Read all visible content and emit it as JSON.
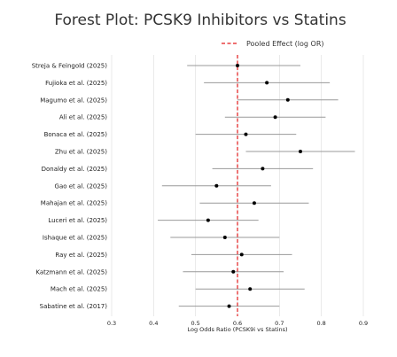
{
  "chart_data": {
    "type": "forest",
    "title": "Forest Plot: PCSK9 Inhibitors vs Statins",
    "xlabel": "Log Odds Ratio (PCSK9i vs Statins)",
    "xlim": [
      0.3,
      0.9
    ],
    "xticks": [
      "0.3",
      "0.4",
      "0.5",
      "0.6",
      "0.7",
      "0.8",
      "0.9"
    ],
    "grid": "vertical",
    "legend": {
      "label": "Pooled Effect (log OR)",
      "placement": "top-right"
    },
    "pooled_effect": 0.6,
    "colors": {
      "pooled_line": "#e31a1c",
      "ci_line": "#999999",
      "point": "#000000",
      "grid": "#e3e3e3"
    },
    "studies": [
      {
        "label": "Streja & Feingold (2025)",
        "estimate": 0.6,
        "ci_low": 0.48,
        "ci_high": 0.75
      },
      {
        "label": "Fujioka et al. (2025)",
        "estimate": 0.67,
        "ci_low": 0.52,
        "ci_high": 0.82
      },
      {
        "label": "Magumo et al. (2025)",
        "estimate": 0.72,
        "ci_low": 0.6,
        "ci_high": 0.84
      },
      {
        "label": "Ali et al. (2025)",
        "estimate": 0.69,
        "ci_low": 0.57,
        "ci_high": 0.81
      },
      {
        "label": "Bonaca et al. (2025)",
        "estimate": 0.62,
        "ci_low": 0.5,
        "ci_high": 0.74
      },
      {
        "label": "Zhu et al. (2025)",
        "estimate": 0.75,
        "ci_low": 0.62,
        "ci_high": 0.88
      },
      {
        "label": "Donaldy et al. (2025)",
        "estimate": 0.66,
        "ci_low": 0.54,
        "ci_high": 0.78
      },
      {
        "label": "Gao et al. (2025)",
        "estimate": 0.55,
        "ci_low": 0.42,
        "ci_high": 0.68
      },
      {
        "label": "Mahajan et al. (2025)",
        "estimate": 0.64,
        "ci_low": 0.51,
        "ci_high": 0.77
      },
      {
        "label": "Luceri et al. (2025)",
        "estimate": 0.53,
        "ci_low": 0.41,
        "ci_high": 0.65
      },
      {
        "label": "Ishaque et al. (2025)",
        "estimate": 0.57,
        "ci_low": 0.44,
        "ci_high": 0.7
      },
      {
        "label": "Ray et al. (2025)",
        "estimate": 0.61,
        "ci_low": 0.49,
        "ci_high": 0.73
      },
      {
        "label": "Katzmann et al. (2025)",
        "estimate": 0.59,
        "ci_low": 0.47,
        "ci_high": 0.71
      },
      {
        "label": "Mach et al. (2025)",
        "estimate": 0.63,
        "ci_low": 0.5,
        "ci_high": 0.76
      },
      {
        "label": "Sabatine et al. (2017)",
        "estimate": 0.58,
        "ci_low": 0.46,
        "ci_high": 0.7
      }
    ]
  }
}
